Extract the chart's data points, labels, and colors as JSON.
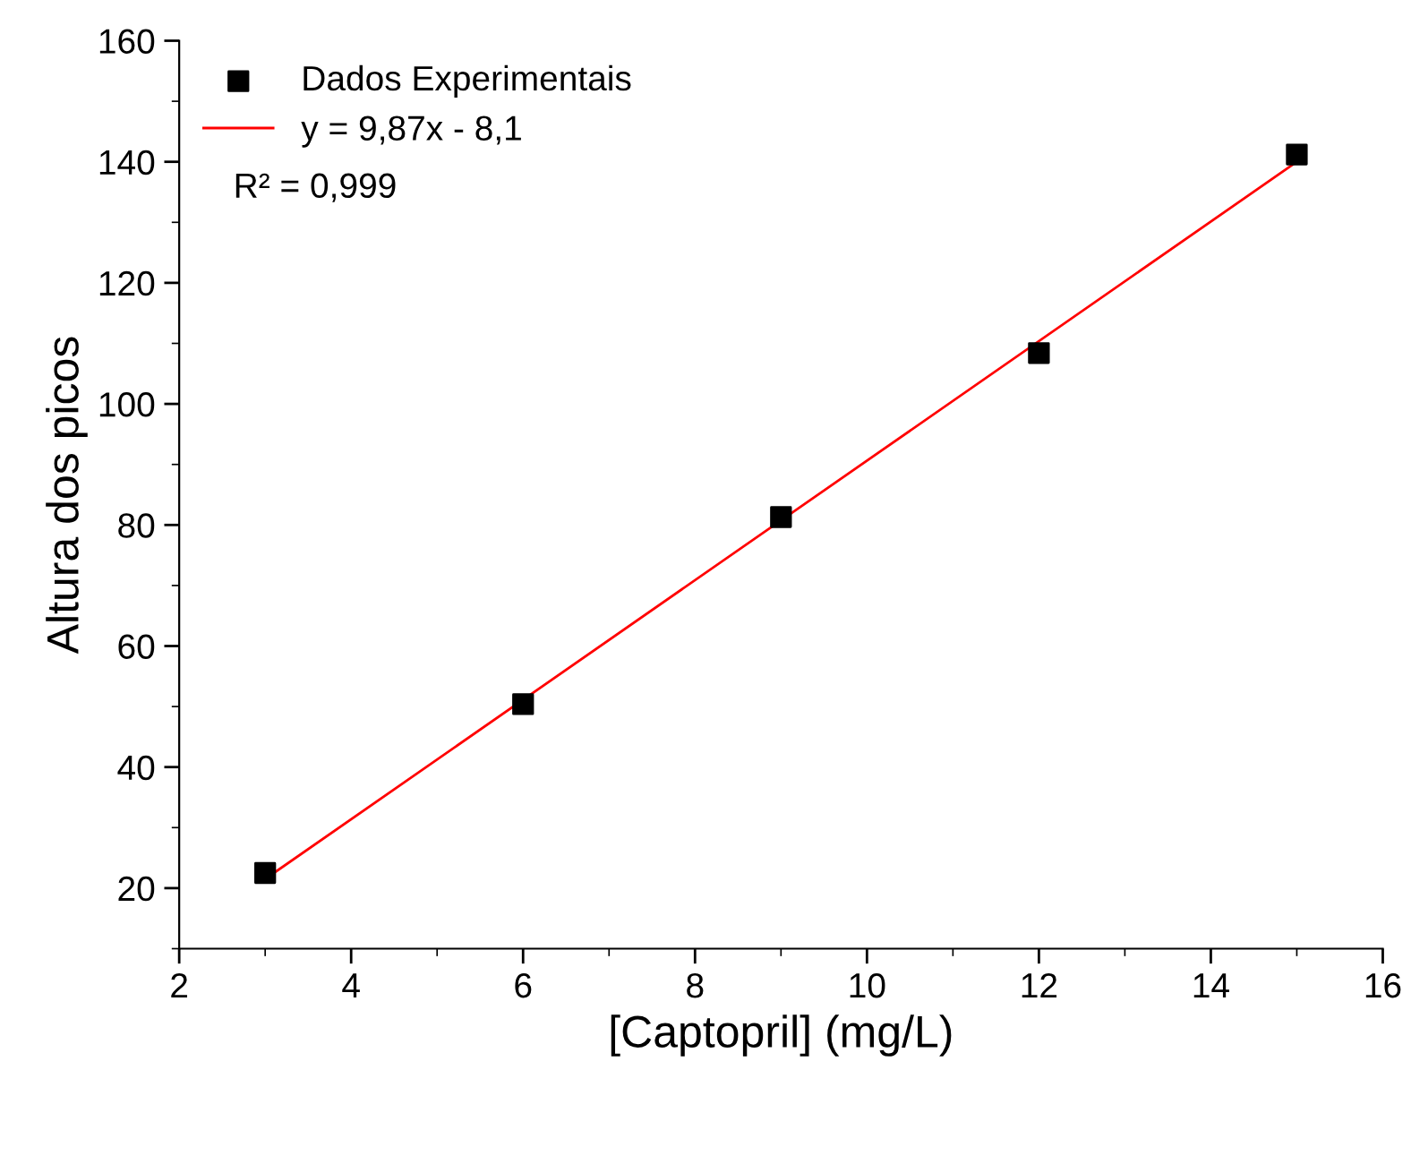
{
  "chart_data": {
    "type": "scatter",
    "xlabel": "[Captopril] (mg/L)",
    "ylabel": "Altura dos picos",
    "x": [
      3,
      6,
      9,
      12,
      15
    ],
    "series": [
      {
        "name": "Dados Experimentais",
        "color": "#000000",
        "values": [
          22.5,
          50.4,
          81.3,
          108.4,
          141.2
        ],
        "marker": "square"
      },
      {
        "name": "y = 9,87x - 8,1",
        "type": "line",
        "color": "#ff0000",
        "x": [
          3,
          15
        ],
        "values": [
          21.5,
          140
        ],
        "marker": "none"
      }
    ],
    "annotations": [
      "R² = 0,999"
    ],
    "xlim": [
      2,
      16
    ],
    "xticks": [
      2,
      4,
      6,
      8,
      10,
      12,
      14,
      16
    ],
    "ylim": [
      10,
      160
    ],
    "yticks": [
      20,
      40,
      60,
      80,
      100,
      120,
      140,
      160
    ],
    "grid": false,
    "legend": "top left"
  }
}
